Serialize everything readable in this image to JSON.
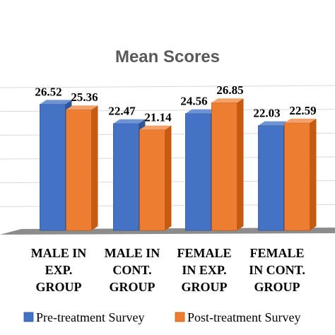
{
  "chart_data": {
    "type": "bar",
    "title": "Mean Scores",
    "categories": [
      "MALE IN EXP. GROUP",
      "MALE IN CONT. GROUP",
      "FEMALE IN EXP. GROUP",
      "FEMALE IN CONT. GROUP"
    ],
    "category_lines": [
      [
        "MALE IN",
        "EXP.",
        "GROUP"
      ],
      [
        "MALE IN",
        "CONT.",
        "GROUP"
      ],
      [
        "FEMALE",
        "IN EXP.",
        "GROUP"
      ],
      [
        "FEMALE",
        "IN CONT.",
        "GROUP"
      ]
    ],
    "series": [
      {
        "name": "Pre-treatment Survey",
        "values": [
          26.52,
          22.47,
          24.56,
          22.03
        ]
      },
      {
        "name": "Post-treatment Survey",
        "values": [
          25.36,
          21.14,
          26.85,
          22.59
        ]
      }
    ],
    "ylim": [
      0,
      30
    ],
    "y_ticks": [
      0,
      5,
      10,
      15,
      20,
      25,
      30
    ],
    "style": "3d-clustered-column",
    "grid": true,
    "legend_position": "bottom",
    "colors": {
      "pre": "#4472C4",
      "pre_dark": "#2F5597",
      "pre_light": "#6F94D6",
      "post": "#ED7D31",
      "post_dark": "#C55A11",
      "post_light": "#F4A06A",
      "grid": "#D9D9D9",
      "floor": "#8C8C8C",
      "text": "#000000",
      "title": "#595959"
    }
  }
}
